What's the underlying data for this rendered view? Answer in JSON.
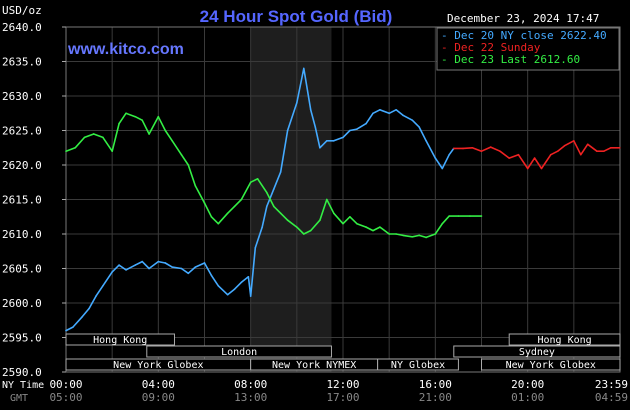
{
  "chart_data": {
    "type": "line",
    "title": "24 Hour Spot Gold (Bid)",
    "watermark": "www.kitco.com",
    "date_stamp": "December 23, 2024 17:47",
    "ylabel": "USD/oz",
    "ylim": [
      2590.0,
      2640.0
    ],
    "y_ticks": [
      "2640.0",
      "2635.0",
      "2630.0",
      "2625.0",
      "2620.0",
      "2615.0",
      "2610.0",
      "2605.0",
      "2600.0",
      "2595.0",
      "2590.0"
    ],
    "x_range_hours": [
      0,
      24
    ],
    "x_ticks_ny": [
      "00:00",
      "04:00",
      "08:00",
      "12:00",
      "16:00",
      "20:00",
      "23:59"
    ],
    "x_ticks_gmt": [
      "05:00",
      "09:00",
      "13:00",
      "17:00",
      "21:00",
      "01:00",
      "04:59"
    ],
    "row_labels": {
      "ny": "NY Time",
      "gmt": "GMT"
    },
    "grid": true,
    "legend_position": "top-right",
    "colors": {
      "background": "#000000",
      "grid": "#3a3a3a",
      "axis_text": "#ffffff",
      "title": "#5566ff",
      "watermark": "#6677ff",
      "highlight": "#1e1e1e",
      "session_text": "#ffffff",
      "session_border": "#aaaaaa"
    },
    "highlight_window_hours": [
      8.0,
      11.5
    ],
    "sessions": [
      {
        "name": "Hong Kong",
        "start": 0.0,
        "end": 4.7
      },
      {
        "name": "London",
        "start": 3.5,
        "end": 11.5
      },
      {
        "name": "New York Globex",
        "start": 0.0,
        "end": 8.0
      },
      {
        "name": "New York NYMEX",
        "start": 8.0,
        "end": 13.5
      },
      {
        "name": "NY Globex",
        "start": 13.5,
        "end": 17.0
      },
      {
        "name": "Hong Kong",
        "start": 19.2,
        "end": 24.0
      },
      {
        "name": "Sydney",
        "start": 16.8,
        "end": 24.0
      },
      {
        "name": "New York Globex",
        "start": 18.0,
        "end": 24.0
      }
    ],
    "series": [
      {
        "name": "Dec 20 NY close 2622.40",
        "color": "#44aaff",
        "x": [
          0.0,
          0.3,
          0.7,
          1.0,
          1.3,
          1.6,
          2.0,
          2.3,
          2.6,
          3.0,
          3.3,
          3.6,
          4.0,
          4.3,
          4.6,
          5.0,
          5.3,
          5.6,
          6.0,
          6.3,
          6.6,
          7.0,
          7.3,
          7.6,
          7.9,
          8.0,
          8.2,
          8.5,
          8.7,
          9.0,
          9.3,
          9.6,
          10.0,
          10.3,
          10.6,
          10.8,
          11.0,
          11.3,
          11.6,
          12.0,
          12.3,
          12.6,
          13.0,
          13.3,
          13.6,
          14.0,
          14.3,
          14.6,
          15.0,
          15.3,
          15.6,
          16.0,
          16.3,
          16.6,
          16.8
        ],
        "y": [
          2596.0,
          2596.5,
          2598.0,
          2599.2,
          2601.0,
          2602.5,
          2604.5,
          2605.5,
          2604.8,
          2605.5,
          2606.0,
          2605.0,
          2606.0,
          2605.8,
          2605.2,
          2605.0,
          2604.3,
          2605.2,
          2605.8,
          2604.0,
          2602.5,
          2601.2,
          2602.0,
          2603.0,
          2603.8,
          2601.0,
          2608.0,
          2611.0,
          2614.0,
          2616.5,
          2619.0,
          2625.0,
          2629.0,
          2634.0,
          2628.0,
          2625.5,
          2622.5,
          2623.5,
          2623.5,
          2624.0,
          2625.0,
          2625.2,
          2626.0,
          2627.5,
          2628.0,
          2627.5,
          2628.0,
          2627.2,
          2626.5,
          2625.5,
          2623.5,
          2621.0,
          2619.5,
          2621.5,
          2622.4
        ]
      },
      {
        "name": "Dec 22 Sunday",
        "color": "#ee2222",
        "x": [
          16.8,
          17.2,
          17.6,
          18.0,
          18.4,
          18.8,
          19.2,
          19.6,
          20.0,
          20.3,
          20.6,
          21.0,
          21.3,
          21.6,
          22.0,
          22.3,
          22.6,
          23.0,
          23.3,
          23.6,
          23.99
        ],
        "y": [
          2622.4,
          2622.4,
          2622.5,
          2622.0,
          2622.6,
          2622.0,
          2621.0,
          2621.5,
          2619.5,
          2621.0,
          2619.5,
          2621.5,
          2622.0,
          2622.8,
          2623.5,
          2621.5,
          2623.0,
          2622.0,
          2622.0,
          2622.5,
          2622.5
        ]
      },
      {
        "name": "Dec 23 Last 2612.60",
        "color": "#33ee44",
        "x": [
          0.0,
          0.4,
          0.8,
          1.2,
          1.6,
          2.0,
          2.3,
          2.6,
          3.0,
          3.3,
          3.6,
          4.0,
          4.3,
          4.6,
          5.0,
          5.3,
          5.6,
          6.0,
          6.3,
          6.6,
          7.0,
          7.3,
          7.6,
          8.0,
          8.3,
          8.7,
          9.0,
          9.3,
          9.6,
          10.0,
          10.3,
          10.6,
          11.0,
          11.3,
          11.6,
          12.0,
          12.3,
          12.6,
          13.0,
          13.3,
          13.6,
          14.0,
          14.3,
          14.6,
          15.0,
          15.3,
          15.6,
          16.0,
          16.3,
          16.6,
          17.0,
          17.5,
          18.0
        ],
        "y": [
          2622.0,
          2622.5,
          2624.0,
          2624.5,
          2624.0,
          2622.0,
          2626.0,
          2627.5,
          2627.0,
          2626.5,
          2624.5,
          2627.0,
          2625.0,
          2623.5,
          2621.5,
          2620.0,
          2617.0,
          2614.5,
          2612.5,
          2611.5,
          2613.0,
          2614.0,
          2615.0,
          2617.5,
          2618.0,
          2616.0,
          2614.0,
          2613.0,
          2612.0,
          2611.0,
          2610.0,
          2610.5,
          2612.0,
          2615.0,
          2613.0,
          2611.5,
          2612.5,
          2611.5,
          2611.0,
          2610.5,
          2611.0,
          2610.0,
          2610.0,
          2609.8,
          2609.6,
          2609.8,
          2609.5,
          2610.0,
          2611.5,
          2612.6,
          2612.6,
          2612.6,
          2612.6
        ]
      }
    ]
  }
}
